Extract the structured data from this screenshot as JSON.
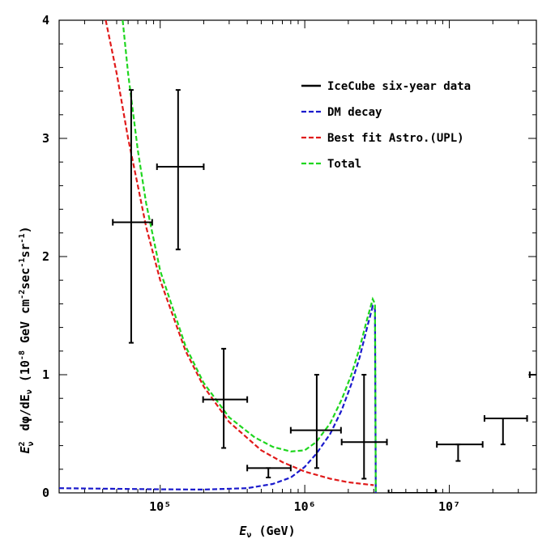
{
  "chart_data": {
    "type": "scatter",
    "xscale": "log",
    "xlim": [
      20000,
      40000000
    ],
    "ylim": [
      0,
      4
    ],
    "grid": false,
    "legend_position": "top-right",
    "xlabel": "E_ν (GeV)",
    "ylabel": "E_ν² dφ/dE_ν (10⁻⁸ GeV cm⁻² sec⁻¹ sr⁻¹)",
    "x_ticks": [
      {
        "value": 100000,
        "label": "10⁵"
      },
      {
        "value": 1000000,
        "label": "10⁶"
      },
      {
        "value": 10000000,
        "label": "10⁷"
      }
    ],
    "y_ticks": [
      {
        "value": 0,
        "label": "0"
      },
      {
        "value": 1,
        "label": "1"
      },
      {
        "value": 2,
        "label": "2"
      },
      {
        "value": 3,
        "label": "3"
      },
      {
        "value": 4,
        "label": "4"
      }
    ],
    "series": [
      {
        "name": "IceCube six-year data",
        "kind": "errorbar",
        "color": "#000000",
        "points": [
          {
            "x": 63000,
            "xlo": 47000,
            "xhi": 88000,
            "y": 2.29,
            "ylo": 1.27,
            "yhi": 3.41
          },
          {
            "x": 133000,
            "xlo": 95000,
            "xhi": 200000,
            "y": 2.76,
            "ylo": 2.06,
            "yhi": 3.41
          },
          {
            "x": 275000,
            "xlo": 198000,
            "xhi": 400000,
            "y": 0.79,
            "ylo": 0.38,
            "yhi": 1.22
          },
          {
            "x": 560000,
            "xlo": 400000,
            "xhi": 800000,
            "y": 0.21,
            "ylo": 0.13,
            "yhi": 0.21
          },
          {
            "x": 1210000,
            "xlo": 800000,
            "xhi": 1780000,
            "y": 0.53,
            "ylo": 0.21,
            "yhi": 1.0
          },
          {
            "x": 2570000,
            "xlo": 1800000,
            "xhi": 3700000,
            "y": 0.43,
            "ylo": 0.12,
            "yhi": 1.0
          },
          {
            "x": 5500000,
            "xlo": 3800000,
            "xhi": 8100000,
            "y": 0.0,
            "ylo": 0.0,
            "yhi": 0.0
          },
          {
            "x": 11500000,
            "xlo": 8200000,
            "xhi": 17000000,
            "y": 0.41,
            "ylo": 0.27,
            "yhi": 0.41
          },
          {
            "x": 23500000,
            "xlo": 17500000,
            "xhi": 34500000,
            "y": 0.63,
            "ylo": 0.41,
            "yhi": 0.63
          },
          {
            "x": 50000000,
            "xlo": 36000000,
            "xhi": 70000000,
            "y": 1.0,
            "ylo": 1.0,
            "yhi": 1.0
          }
        ]
      },
      {
        "name": "DM decay",
        "kind": "dashed-line",
        "color": "#1a1acc",
        "points": [
          [
            20000,
            0.04
          ],
          [
            50000,
            0.034
          ],
          [
            100000,
            0.03
          ],
          [
            200000,
            0.028
          ],
          [
            400000,
            0.04
          ],
          [
            600000,
            0.075
          ],
          [
            800000,
            0.13
          ],
          [
            1000000,
            0.22
          ],
          [
            1200000,
            0.33
          ],
          [
            1500000,
            0.5
          ],
          [
            1800000,
            0.7
          ],
          [
            2100000,
            0.92
          ],
          [
            2400000,
            1.15
          ],
          [
            2700000,
            1.4
          ],
          [
            2950000,
            1.58
          ],
          [
            3060000,
            1.55
          ],
          [
            3100000,
            0.0
          ]
        ]
      },
      {
        "name": "Best fit Astro.(UPL)",
        "kind": "dashed-line",
        "color": "#e01a1a",
        "points": [
          [
            42000,
            4.0
          ],
          [
            50000,
            3.55
          ],
          [
            60000,
            3.0
          ],
          [
            70000,
            2.6
          ],
          [
            80000,
            2.25
          ],
          [
            100000,
            1.8
          ],
          [
            150000,
            1.2
          ],
          [
            200000,
            0.9
          ],
          [
            300000,
            0.6
          ],
          [
            500000,
            0.36
          ],
          [
            700000,
            0.26
          ],
          [
            1000000,
            0.18
          ],
          [
            1500000,
            0.12
          ],
          [
            2000000,
            0.09
          ],
          [
            3000000,
            0.065
          ]
        ]
      },
      {
        "name": "Total",
        "kind": "dashed-line",
        "color": "#1fd61f",
        "points": [
          [
            55000,
            4.0
          ],
          [
            60000,
            3.55
          ],
          [
            70000,
            2.9
          ],
          [
            80000,
            2.45
          ],
          [
            100000,
            1.88
          ],
          [
            150000,
            1.24
          ],
          [
            200000,
            0.93
          ],
          [
            300000,
            0.64
          ],
          [
            450000,
            0.47
          ],
          [
            600000,
            0.39
          ],
          [
            800000,
            0.35
          ],
          [
            1000000,
            0.36
          ],
          [
            1200000,
            0.43
          ],
          [
            1500000,
            0.59
          ],
          [
            1800000,
            0.79
          ],
          [
            2100000,
            1.0
          ],
          [
            2400000,
            1.23
          ],
          [
            2700000,
            1.47
          ],
          [
            2950000,
            1.64
          ],
          [
            3060000,
            1.6
          ],
          [
            3100000,
            0.0
          ]
        ]
      }
    ]
  }
}
